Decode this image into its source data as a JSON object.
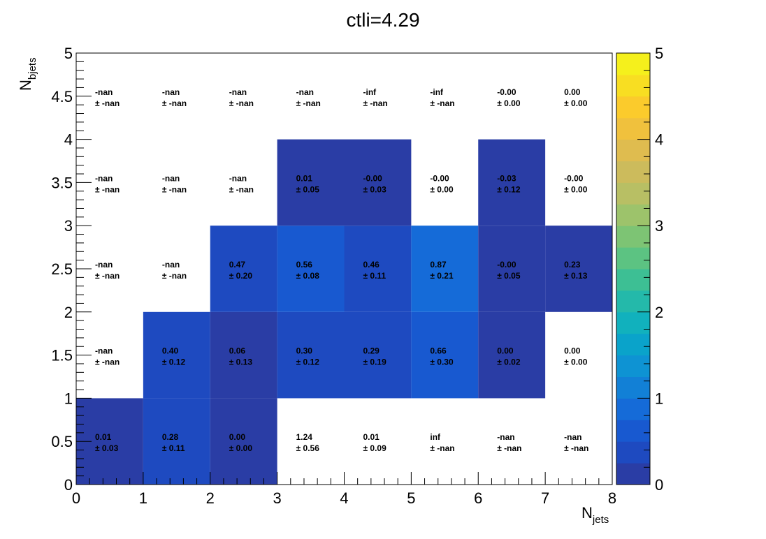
{
  "chart_data": {
    "type": "heatmap",
    "title": "ctli=4.29",
    "xlabel": "N",
    "xlabel_sub": "jets",
    "ylabel": "N",
    "ylabel_sub": "bjets",
    "xlim": [
      0,
      8
    ],
    "ylim": [
      0,
      5
    ],
    "zlim": [
      0,
      5
    ],
    "x_ticks": [
      "0",
      "1",
      "2",
      "3",
      "4",
      "5",
      "6",
      "7",
      "8"
    ],
    "y_ticks": [
      "0",
      "0.5",
      "1",
      "1.5",
      "2",
      "2.5",
      "3",
      "3.5",
      "4",
      "4.5",
      "5"
    ],
    "colorbar_ticks": [
      "0",
      "1",
      "2",
      "3",
      "4",
      "5"
    ],
    "palette": [
      "#2a3da5",
      "#1e4ac0",
      "#1859d0",
      "#156bd8",
      "#1280d6",
      "#0e93d3",
      "#0aa3ca",
      "#11b1bd",
      "#24b9aa",
      "#3dbf94",
      "#5cc382",
      "#7dc474",
      "#9dc36b",
      "#b8bf64",
      "#ccbb5c",
      "#dfbc4f",
      "#f0c13d",
      "#fbcb2c",
      "#f8de22",
      "#f5f01c"
    ],
    "cells": [
      {
        "x": 0,
        "y": 0,
        "value": 0.01,
        "label": "0.01",
        "error": "± 0.03",
        "filled": true
      },
      {
        "x": 1,
        "y": 0,
        "value": 0.28,
        "label": "0.28",
        "error": "± 0.11",
        "filled": true
      },
      {
        "x": 2,
        "y": 0,
        "value": 0.0,
        "label": "0.00",
        "error": "± 0.00",
        "filled": true
      },
      {
        "x": 3,
        "y": 0,
        "value": 1.24,
        "label": "1.24",
        "error": "± 0.56",
        "filled": false
      },
      {
        "x": 4,
        "y": 0,
        "value": 0.01,
        "label": "0.01",
        "error": "± 0.09",
        "filled": false
      },
      {
        "x": 5,
        "y": 0,
        "value": null,
        "label": "inf",
        "error": "± -nan",
        "filled": false
      },
      {
        "x": 6,
        "y": 0,
        "value": null,
        "label": "-nan",
        "error": "± -nan",
        "filled": false
      },
      {
        "x": 7,
        "y": 0,
        "value": null,
        "label": "-nan",
        "error": "± -nan",
        "filled": false
      },
      {
        "x": 0,
        "y": 1,
        "value": null,
        "label": "-nan",
        "error": "± -nan",
        "filled": false
      },
      {
        "x": 1,
        "y": 1,
        "value": 0.4,
        "label": "0.40",
        "error": "± 0.12",
        "filled": true
      },
      {
        "x": 2,
        "y": 1,
        "value": 0.06,
        "label": "0.06",
        "error": "± 0.13",
        "filled": true
      },
      {
        "x": 3,
        "y": 1,
        "value": 0.3,
        "label": "0.30",
        "error": "± 0.12",
        "filled": true
      },
      {
        "x": 4,
        "y": 1,
        "value": 0.29,
        "label": "0.29",
        "error": "± 0.19",
        "filled": true
      },
      {
        "x": 5,
        "y": 1,
        "value": 0.66,
        "label": "0.66",
        "error": "± 0.30",
        "filled": true
      },
      {
        "x": 6,
        "y": 1,
        "value": 0.0,
        "label": "0.00",
        "error": "± 0.02",
        "filled": true
      },
      {
        "x": 7,
        "y": 1,
        "value": 0.0,
        "label": "0.00",
        "error": "± 0.00",
        "filled": false
      },
      {
        "x": 0,
        "y": 2,
        "value": null,
        "label": "-nan",
        "error": "± -nan",
        "filled": false
      },
      {
        "x": 1,
        "y": 2,
        "value": null,
        "label": "-nan",
        "error": "± -nan",
        "filled": false
      },
      {
        "x": 2,
        "y": 2,
        "value": 0.47,
        "label": "0.47",
        "error": "± 0.20",
        "filled": true
      },
      {
        "x": 3,
        "y": 2,
        "value": 0.56,
        "label": "0.56",
        "error": "± 0.08",
        "filled": true
      },
      {
        "x": 4,
        "y": 2,
        "value": 0.46,
        "label": "0.46",
        "error": "± 0.11",
        "filled": true
      },
      {
        "x": 5,
        "y": 2,
        "value": 0.87,
        "label": "0.87",
        "error": "± 0.21",
        "filled": true
      },
      {
        "x": 6,
        "y": 2,
        "value": 0.0,
        "label": "-0.00",
        "error": "± 0.05",
        "filled": true
      },
      {
        "x": 7,
        "y": 2,
        "value": 0.23,
        "label": "0.23",
        "error": "± 0.13",
        "filled": true
      },
      {
        "x": 0,
        "y": 3,
        "value": null,
        "label": "-nan",
        "error": "± -nan",
        "filled": false
      },
      {
        "x": 1,
        "y": 3,
        "value": null,
        "label": "-nan",
        "error": "± -nan",
        "filled": false
      },
      {
        "x": 2,
        "y": 3,
        "value": null,
        "label": "-nan",
        "error": "± -nan",
        "filled": false
      },
      {
        "x": 3,
        "y": 3,
        "value": 0.01,
        "label": "0.01",
        "error": "± 0.05",
        "filled": true
      },
      {
        "x": 4,
        "y": 3,
        "value": 0.0,
        "label": "-0.00",
        "error": "± 0.03",
        "filled": true
      },
      {
        "x": 5,
        "y": 3,
        "value": 0.0,
        "label": "-0.00",
        "error": "± 0.00",
        "filled": false
      },
      {
        "x": 6,
        "y": 3,
        "value": -0.03,
        "label": "-0.03",
        "error": "± 0.12",
        "filled": true
      },
      {
        "x": 7,
        "y": 3,
        "value": 0.0,
        "label": "-0.00",
        "error": "± 0.00",
        "filled": false
      },
      {
        "x": 0,
        "y": 4,
        "value": null,
        "label": "-nan",
        "error": "± -nan",
        "filled": false
      },
      {
        "x": 1,
        "y": 4,
        "value": null,
        "label": "-nan",
        "error": "± -nan",
        "filled": false
      },
      {
        "x": 2,
        "y": 4,
        "value": null,
        "label": "-nan",
        "error": "± -nan",
        "filled": false
      },
      {
        "x": 3,
        "y": 4,
        "value": null,
        "label": "-nan",
        "error": "± -nan",
        "filled": false
      },
      {
        "x": 4,
        "y": 4,
        "value": null,
        "label": "-inf",
        "error": "± -nan",
        "filled": false
      },
      {
        "x": 5,
        "y": 4,
        "value": null,
        "label": "-inf",
        "error": "± -nan",
        "filled": false
      },
      {
        "x": 6,
        "y": 4,
        "value": 0.0,
        "label": "-0.00",
        "error": "± 0.00",
        "filled": false
      },
      {
        "x": 7,
        "y": 4,
        "value": 0.0,
        "label": "0.00",
        "error": "± 0.00",
        "filled": false
      }
    ]
  }
}
